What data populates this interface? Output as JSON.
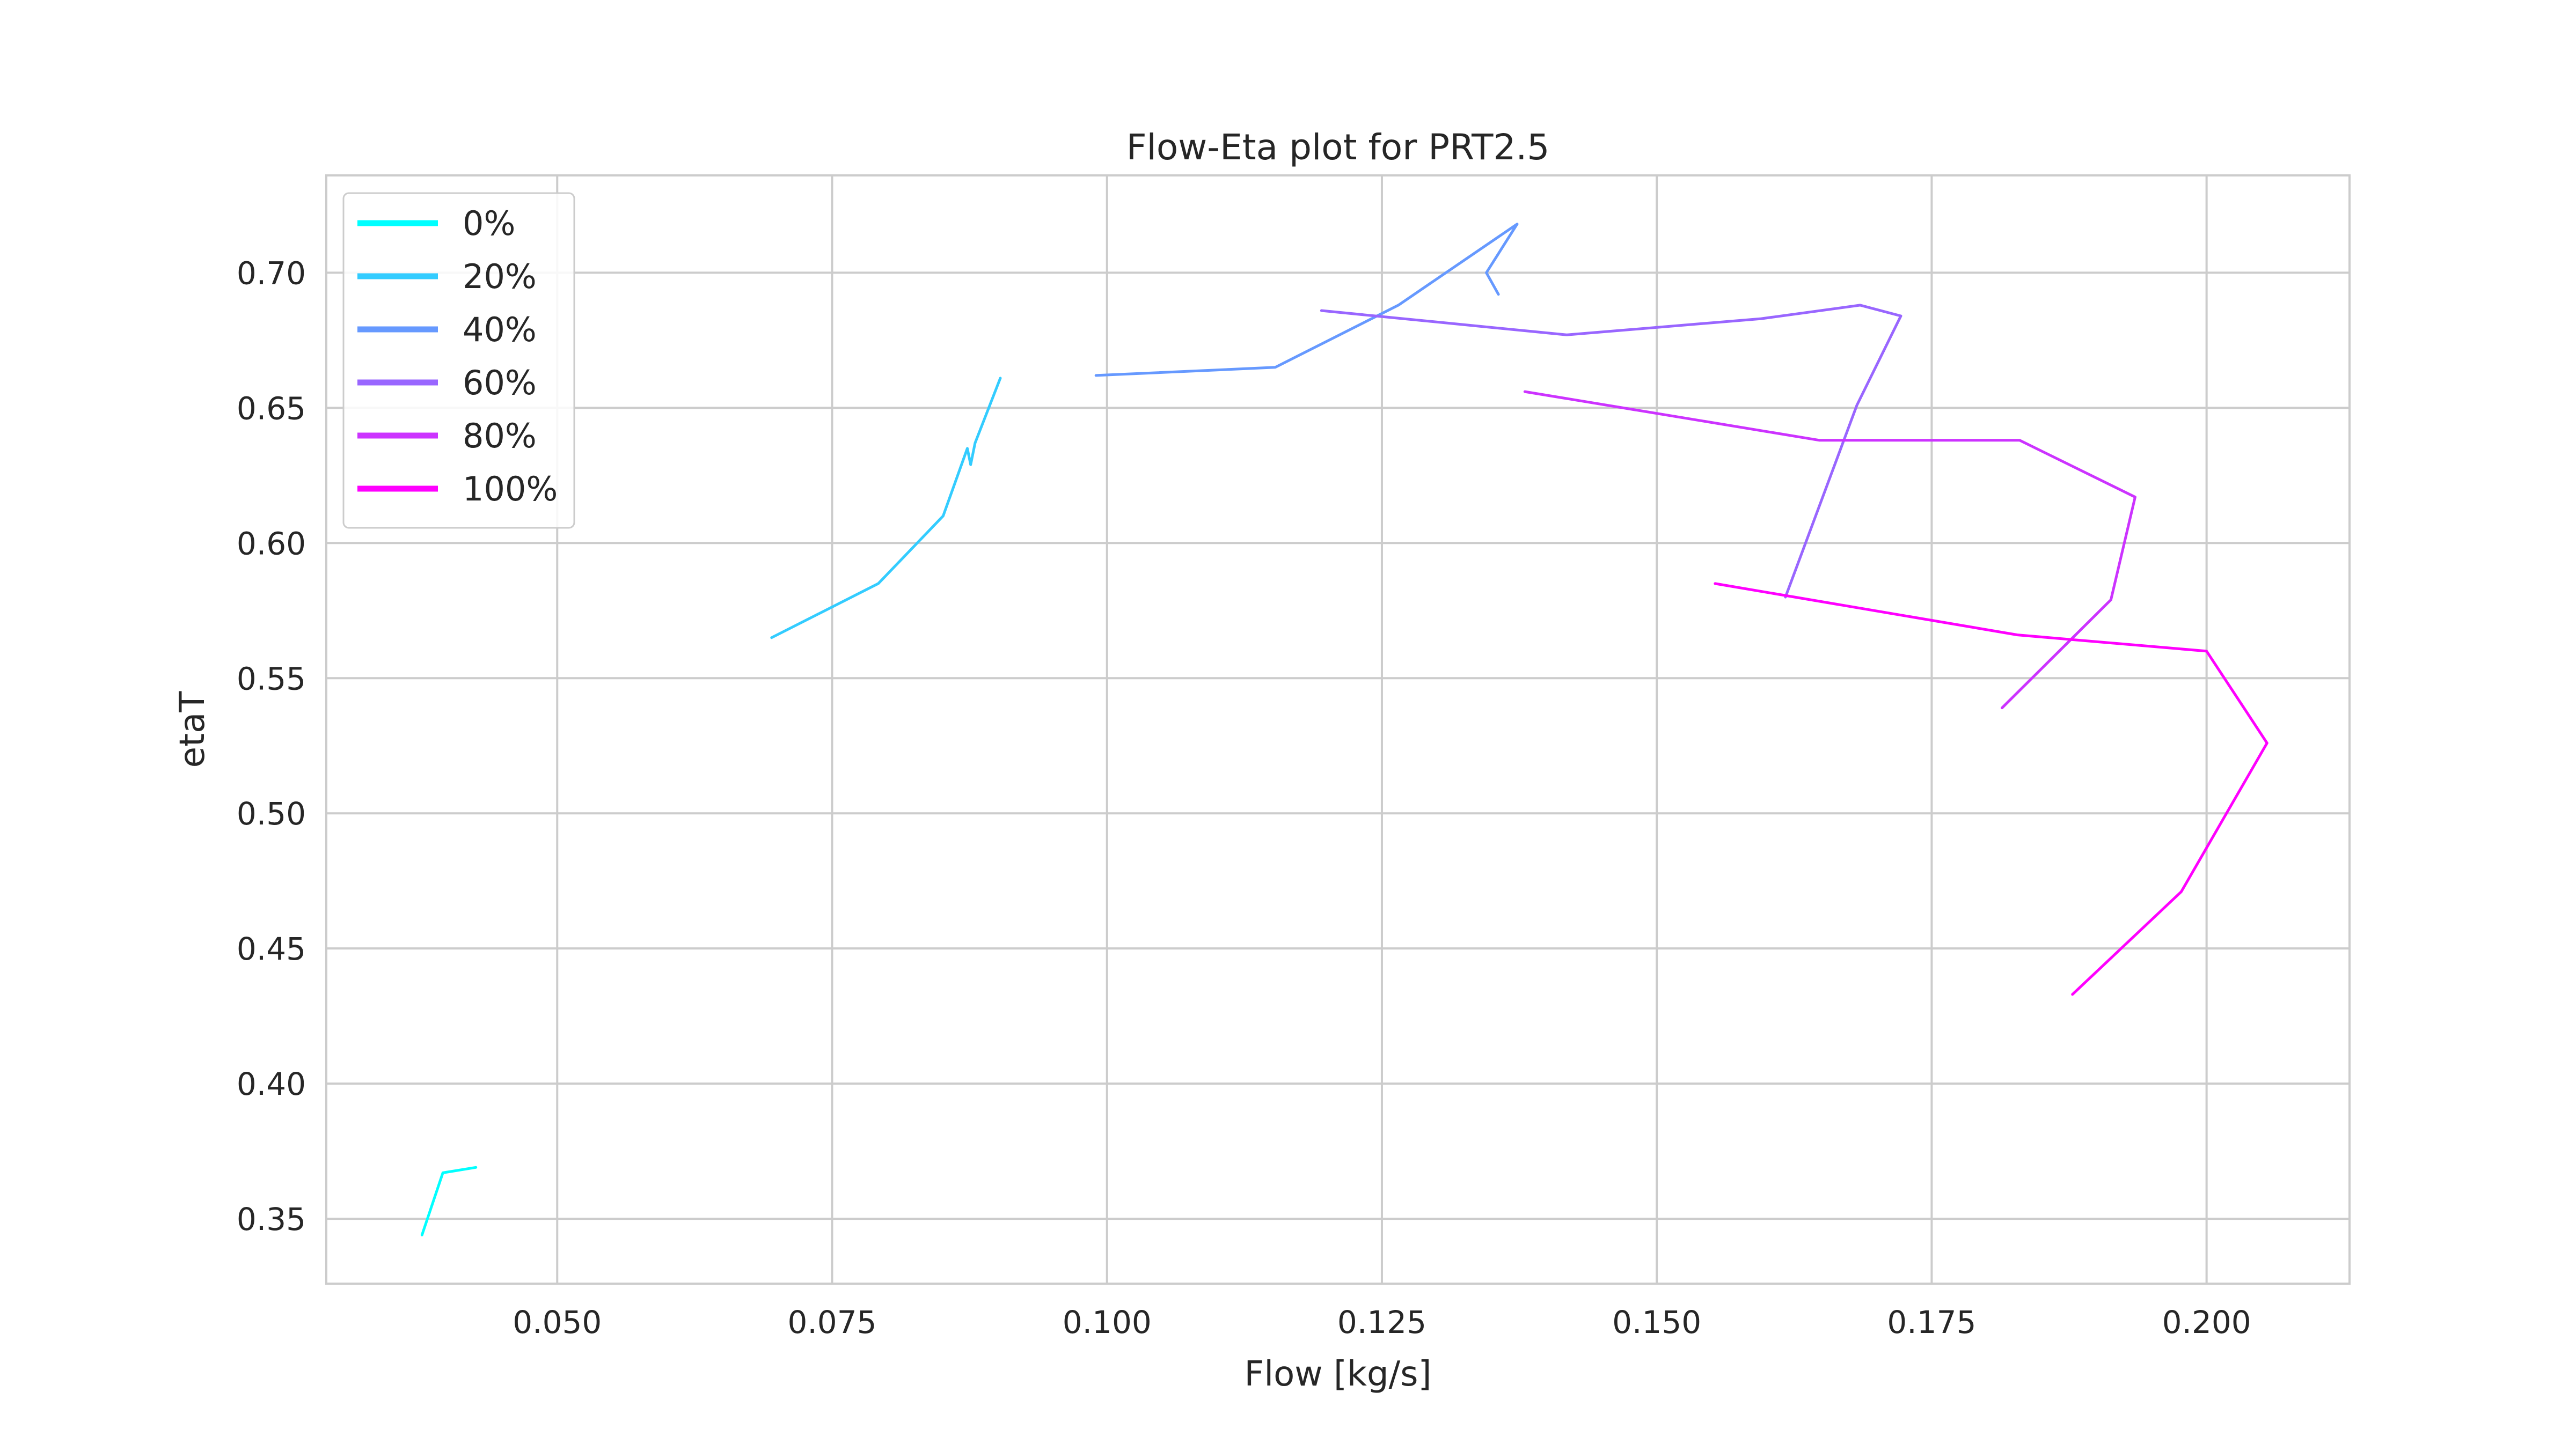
{
  "chart_data": {
    "type": "line",
    "title": "Flow-Eta plot for PRT2.5",
    "xlabel": "Flow [kg/s]",
    "ylabel": "etaT",
    "xlim": [
      0.029,
      0.213
    ],
    "ylim": [
      0.326,
      0.736
    ],
    "xticks": [
      0.05,
      0.075,
      0.1,
      0.125,
      0.15,
      0.175,
      0.2
    ],
    "xtick_labels": [
      "0.050",
      "0.075",
      "0.100",
      "0.125",
      "0.150",
      "0.175",
      "0.200"
    ],
    "yticks": [
      0.35,
      0.4,
      0.45,
      0.5,
      0.55,
      0.6,
      0.65,
      0.7
    ],
    "ytick_labels": [
      "0.35",
      "0.40",
      "0.45",
      "0.50",
      "0.55",
      "0.60",
      "0.65",
      "0.70"
    ],
    "grid": true,
    "legend_position": "top-left",
    "series": [
      {
        "name": "0%",
        "color": "#00ffff",
        "x": [
          0.0377,
          0.0396,
          0.0426
        ],
        "y": [
          0.344,
          0.367,
          0.369
        ]
      },
      {
        "name": "20%",
        "color": "#33ccff",
        "x": [
          0.0695,
          0.0792,
          0.0851,
          0.0873,
          0.0876,
          0.088,
          0.0903
        ],
        "y": [
          0.565,
          0.585,
          0.61,
          0.635,
          0.629,
          0.637,
          0.661
        ]
      },
      {
        "name": "40%",
        "color": "#6699ff",
        "x": [
          0.099,
          0.1153,
          0.1265,
          0.1373,
          0.1345,
          0.1356
        ],
        "y": [
          0.662,
          0.665,
          0.688,
          0.718,
          0.7,
          0.692
        ]
      },
      {
        "name": "60%",
        "color": "#9966ff",
        "x": [
          0.1195,
          0.1418,
          0.1595,
          0.1685,
          0.1722,
          0.1682,
          0.1617
        ],
        "y": [
          0.686,
          0.677,
          0.683,
          0.688,
          0.684,
          0.651,
          0.58
        ]
      },
      {
        "name": "80%",
        "color": "#cc33ff",
        "x": [
          0.138,
          0.1648,
          0.183,
          0.1935,
          0.1913,
          0.1814
        ],
        "y": [
          0.656,
          0.638,
          0.638,
          0.617,
          0.579,
          0.539
        ]
      },
      {
        "name": "100%",
        "color": "#ff00ff",
        "x": [
          0.1553,
          0.1828,
          0.2,
          0.2055,
          0.1977,
          0.1878
        ],
        "y": [
          0.585,
          0.566,
          0.56,
          0.526,
          0.471,
          0.433
        ]
      }
    ]
  }
}
